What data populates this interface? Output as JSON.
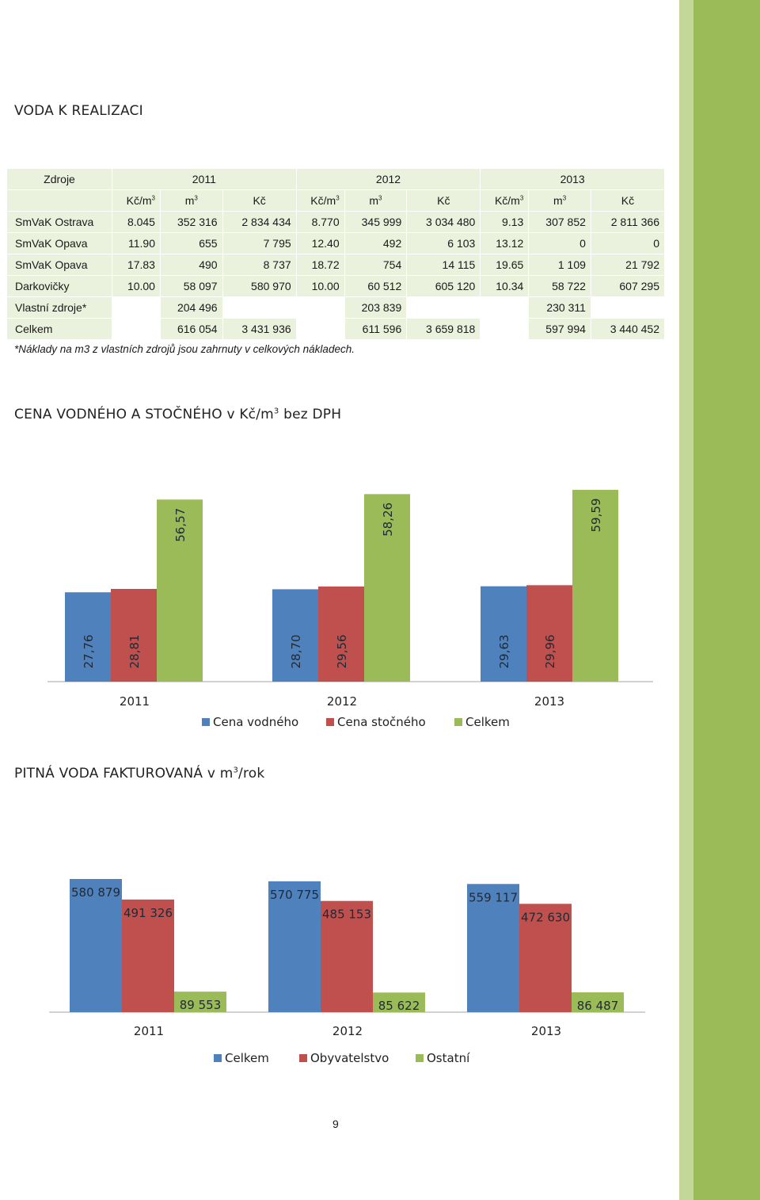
{
  "colors": {
    "stripe_light": "#c4d79b",
    "stripe_dark": "#9bbb59",
    "table_bg": "#eaf1dc",
    "blue": "#4f81bd",
    "red": "#c0504d",
    "green": "#9bbb59"
  },
  "section1": {
    "title": "VODA K REALIZACI"
  },
  "table": {
    "header_col": "Zdroje",
    "years": [
      "2011",
      "2012",
      "2013"
    ],
    "units": [
      "Kč/m",
      "m",
      "Kč"
    ],
    "unit_sup": "3",
    "rows": [
      {
        "label": "SmVaK Ostrava",
        "cells": [
          "8.045",
          "352 316",
          "2 834 434",
          "8.770",
          "345 999",
          "3 034 480",
          "9.13",
          "307 852",
          "2 811 366"
        ]
      },
      {
        "label": "SmVaK Opava",
        "cells": [
          "11.90",
          "655",
          "7 795",
          "12.40",
          "492",
          "6 103",
          "13.12",
          "0",
          "0"
        ]
      },
      {
        "label": "SmVaK Opava",
        "cells": [
          "17.83",
          "490",
          "8 737",
          "18.72",
          "754",
          "14 115",
          "19.65",
          "1 109",
          "21 792"
        ]
      },
      {
        "label": "Darkovičky",
        "cells": [
          "10.00",
          "58 097",
          "580 970",
          "10.00",
          "60 512",
          "605 120",
          "10.34",
          "58 722",
          "607 295"
        ]
      },
      {
        "label": "Vlastní zdroje*",
        "cells": [
          "",
          "204 496",
          "",
          "",
          "203 839",
          "",
          "",
          "230 311",
          ""
        ]
      },
      {
        "label": "Celkem",
        "cells": [
          "",
          "616 054",
          "3 431 936",
          "",
          "611 596",
          "3 659 818",
          "",
          "597 994",
          "3 440 452"
        ]
      }
    ],
    "note": "*Náklady na m3 z vlastních zdrojů jsou zahrnuty v celkových nákladech."
  },
  "section2": {
    "title_before": "CENA VODNÉHO A STOČNÉHO v Kč/m",
    "title_sup": "3",
    "title_after": " bez DPH"
  },
  "section3": {
    "title_before": "PITNÁ VODA FAKTUROVANÁ v m",
    "title_sup": "3",
    "title_after": "/rok"
  },
  "chart_data": [
    {
      "type": "bar",
      "categories": [
        "2011",
        "2012",
        "2013"
      ],
      "series": [
        {
          "name": "Cena vodného",
          "values": [
            27.76,
            28.7,
            29.63
          ],
          "labels": [
            "27,76",
            "28,70",
            "29,63"
          ],
          "color": "#4f81bd"
        },
        {
          "name": "Cena stočného",
          "values": [
            28.81,
            29.56,
            29.96
          ],
          "labels": [
            "28,81",
            "29,56",
            "29,96"
          ],
          "color": "#c0504d"
        },
        {
          "name": "Celkem",
          "values": [
            56.57,
            58.26,
            59.59
          ],
          "labels": [
            "56,57",
            "58,26",
            "59,59"
          ],
          "color": "#9bbb59"
        }
      ],
      "legend": "bottom",
      "grid": false,
      "data_labels": "vertical"
    },
    {
      "type": "bar",
      "categories": [
        "2011",
        "2012",
        "2013"
      ],
      "series": [
        {
          "name": "Celkem",
          "values": [
            580879,
            570775,
            559117
          ],
          "labels": [
            "580 879",
            "570 775",
            "559 117"
          ],
          "color": "#4f81bd"
        },
        {
          "name": "Obyvatelstvo",
          "values": [
            491326,
            485153,
            472630
          ],
          "labels": [
            "491 326",
            "485 153",
            "472 630"
          ],
          "color": "#c0504d"
        },
        {
          "name": "Ostatní",
          "values": [
            89553,
            85622,
            86487
          ],
          "labels": [
            "89 553",
            "85 622",
            "86 487"
          ],
          "color": "#9bbb59"
        }
      ],
      "legend": "bottom",
      "grid": false,
      "data_labels": "horizontal"
    }
  ],
  "page_number": "9"
}
